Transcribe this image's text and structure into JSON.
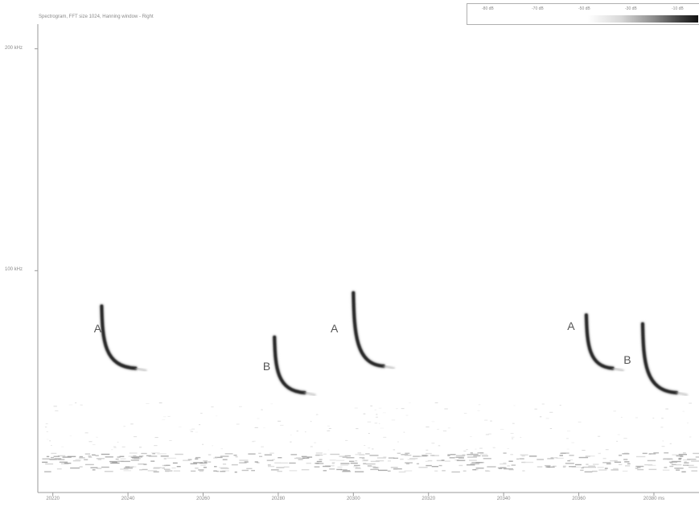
{
  "title": "Spectrogram, FFT size 1024, Hanning window - Right",
  "legend": {
    "labels": [
      "-80 dB",
      "-70 dB",
      "-50 dB",
      "-30 dB",
      "-10 dB"
    ]
  },
  "axes": {
    "y_ticks": [
      {
        "value": 200,
        "label": "200 kHz"
      },
      {
        "value": 100,
        "label": "100 kHz"
      }
    ],
    "x_ticks": [
      {
        "value": 20220,
        "label": "20220"
      },
      {
        "value": 20240,
        "label": "20240"
      },
      {
        "value": 20260,
        "label": "20260"
      },
      {
        "value": 20280,
        "label": "20280"
      },
      {
        "value": 20300,
        "label": "20300"
      },
      {
        "value": 20320,
        "label": "20320"
      },
      {
        "value": 20340,
        "label": "20340"
      },
      {
        "value": 20360,
        "label": "20360"
      },
      {
        "value": 20380,
        "label": "20380 ms"
      }
    ],
    "x_range_ms": [
      20216,
      20392
    ],
    "y_range_khz": [
      0,
      222
    ]
  },
  "annotations": [
    {
      "label": "A",
      "time_ms": 20232,
      "freq_khz": 74
    },
    {
      "label": "B",
      "time_ms": 20277,
      "freq_khz": 57
    },
    {
      "label": "A",
      "time_ms": 20295,
      "freq_khz": 74
    },
    {
      "label": "A",
      "time_ms": 20358,
      "freq_khz": 75
    },
    {
      "label": "B",
      "time_ms": 20373,
      "freq_khz": 60
    }
  ],
  "calls": [
    {
      "type": "A",
      "t_start": 20233,
      "t_end": 20242,
      "f_start": 84,
      "f_end": 56
    },
    {
      "type": "B",
      "t_start": 20279,
      "t_end": 20287,
      "f_start": 70,
      "f_end": 45
    },
    {
      "type": "A",
      "t_start": 20300,
      "t_end": 20308,
      "f_start": 90,
      "f_end": 57
    },
    {
      "type": "A",
      "t_start": 20362,
      "t_end": 20369,
      "f_start": 80,
      "f_end": 56
    },
    {
      "type": "B",
      "t_start": 20377,
      "t_end": 20386,
      "f_start": 76,
      "f_end": 45
    }
  ]
}
